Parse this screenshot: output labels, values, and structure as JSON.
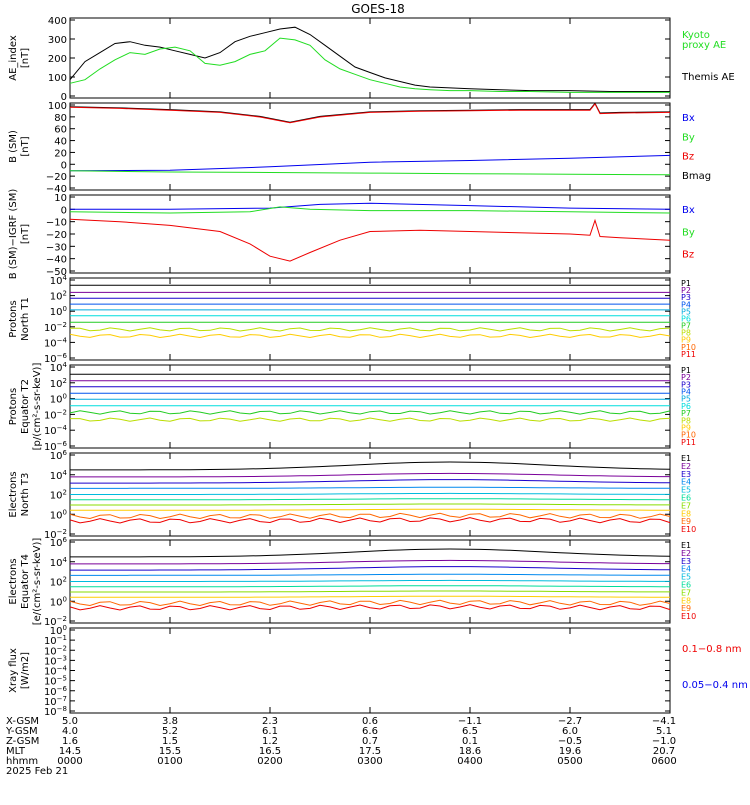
{
  "title": "GOES-18",
  "colors": {
    "black": "#000000",
    "green": "#22dd22",
    "blue": "#0000ee",
    "red": "#ee0000",
    "P": [
      "#000000",
      "#7a0099",
      "#1a00cc",
      "#0055ee",
      "#00aadd",
      "#00dddd",
      "#22cc22",
      "#bbdd00",
      "#ffcc00",
      "#ff6600",
      "#ee0000",
      "#aa0000"
    ],
    "E": [
      "#000000",
      "#7a0099",
      "#1a00cc",
      "#0088ee",
      "#00bbdd",
      "#00dd99",
      "#88dd00",
      "#ffcc00",
      "#ff6600",
      "#ee0000",
      "#aa0000"
    ]
  },
  "panels": [
    {
      "id": "ae",
      "ylabel": [
        "AE_index",
        "[nT]"
      ],
      "ticks": [
        "400",
        "300",
        "200",
        "100",
        "0"
      ],
      "legend": [
        {
          "text": "Kyoto",
          "color": "green"
        },
        {
          "text": "proxy AE",
          "color": "green"
        },
        {
          "text": "Themis AE",
          "color": "black"
        }
      ]
    },
    {
      "id": "bsm",
      "ylabel": [
        "B (SM)",
        "[nT]"
      ],
      "ticks": [
        "100",
        "80",
        "60",
        "40",
        "20",
        "0",
        "−20",
        "−40"
      ],
      "legend": [
        {
          "text": "Bx",
          "color": "blue"
        },
        {
          "text": "By",
          "color": "green"
        },
        {
          "text": "Bz",
          "color": "red"
        },
        {
          "text": "Bmag",
          "color": "black"
        }
      ]
    },
    {
      "id": "bigrf",
      "ylabel": [
        "B (SM)−IGRF (SM)",
        "[nT]"
      ],
      "ticks": [
        "10",
        "0",
        "−10",
        "−20",
        "−30",
        "−40",
        "−50"
      ],
      "legend": [
        {
          "text": "Bx",
          "color": "blue"
        },
        {
          "text": "By",
          "color": "green"
        },
        {
          "text": "Bz",
          "color": "red"
        }
      ]
    },
    {
      "id": "pn",
      "ylabel": [
        "Protons",
        "North T1"
      ],
      "ticks": [
        "10^4",
        "10^2",
        "10^0",
        "10^-2",
        "10^-4",
        "10^-6"
      ],
      "legend": [
        "P1",
        "P2",
        "P3",
        "P4",
        "P5",
        "P6",
        "P7",
        "P8",
        "P9",
        "P10",
        "P11"
      ]
    },
    {
      "id": "pe",
      "ylabel": [
        "Protons",
        "Equator T2",
        "[p/(cm²-s-sr-keV)]"
      ],
      "ticks": [
        "10^4",
        "10^2",
        "10^0",
        "10^-2",
        "10^-4",
        "10^-6"
      ],
      "legend": [
        "P1",
        "P2",
        "P3",
        "P4",
        "P5",
        "P6",
        "P7",
        "P8",
        "P9",
        "P10",
        "P11"
      ]
    },
    {
      "id": "en",
      "ylabel": [
        "Electrons",
        "North T3"
      ],
      "ticks": [
        "10^6",
        "10^4",
        "10^2",
        "10^0",
        "10^-2"
      ],
      "legend": [
        "E1",
        "E2",
        "E3",
        "E4",
        "E5",
        "E6",
        "E7",
        "E8",
        "E9",
        "E10"
      ]
    },
    {
      "id": "ee",
      "ylabel": [
        "Electrons",
        "Equator T4",
        "[e/(cm²-s-sr-keV)]"
      ],
      "ticks": [
        "10^6",
        "10^4",
        "10^2",
        "10^0",
        "10^-2"
      ],
      "legend": [
        "E1",
        "E2",
        "E3",
        "E4",
        "E5",
        "E6",
        "E7",
        "E8",
        "E9",
        "E10"
      ]
    },
    {
      "id": "xr",
      "ylabel": [
        "Xray flux",
        "[W/m2]"
      ],
      "ticks": [
        "10^0",
        "10^-1",
        "10^-2",
        "10^-3",
        "10^-4",
        "10^-5",
        "10^-6",
        "10^-7",
        "10^-8"
      ],
      "legend": [
        {
          "text": "0.1−0.8 nm",
          "color": "red"
        },
        {
          "text": "0.05−0.4 nm",
          "color": "blue"
        }
      ]
    }
  ],
  "footer": {
    "labels": [
      "X-GSM",
      "Y-GSM",
      "Z-GSM",
      "MLT",
      "hhmm",
      "2025 Feb 21"
    ],
    "columns": [
      [
        "5.0",
        "4.0",
        "1.6",
        "14.5",
        "0000"
      ],
      [
        "3.8",
        "5.2",
        "1.5",
        "15.5",
        "0100"
      ],
      [
        "2.3",
        "6.1",
        "1.2",
        "16.5",
        "0200"
      ],
      [
        "0.6",
        "6.6",
        "0.7",
        "17.5",
        "0300"
      ],
      [
        "−1.1",
        "6.5",
        "0.1",
        "18.6",
        "0400"
      ],
      [
        "−2.7",
        "6.0",
        "−0.5",
        "19.6",
        "0500"
      ],
      [
        "−4.1",
        "5.1",
        "−1.0",
        "20.7",
        "0600"
      ]
    ]
  },
  "chart_data": {
    "type": "line",
    "title": "GOES-18",
    "x_ticks": [
      "0000",
      "0100",
      "0200",
      "0300",
      "0400",
      "0500",
      "0600"
    ],
    "xlim": [
      0,
      6
    ],
    "x_unit": "hours UT, 2025 Feb 21",
    "panels": [
      {
        "id": "ae",
        "ylim": [
          0,
          420
        ],
        "scale": "linear",
        "series": [
          {
            "name": "Themis AE",
            "color": "black",
            "x": [
              0,
              0.15,
              0.3,
              0.45,
              0.6,
              0.75,
              0.9,
              1.05,
              1.2,
              1.35,
              1.5,
              1.65,
              1.8,
              1.95,
              2.1,
              2.25,
              2.4,
              2.55,
              2.7,
              2.85,
              3.0,
              3.15,
              3.3,
              3.45,
              3.6,
              3.8,
              4.0,
              4.3,
              4.6,
              5.0,
              5.4,
              6.0
            ],
            "y": [
              90,
              190,
              240,
              290,
              300,
              280,
              270,
              250,
              230,
              210,
              240,
              300,
              330,
              350,
              370,
              380,
              340,
              280,
              220,
              160,
              130,
              100,
              80,
              60,
              50,
              45,
              40,
              35,
              30,
              30,
              25,
              25
            ]
          },
          {
            "name": "Kyoto proxy AE",
            "color": "green",
            "x": [
              0,
              0.15,
              0.3,
              0.45,
              0.6,
              0.75,
              0.9,
              1.05,
              1.2,
              1.35,
              1.5,
              1.65,
              1.8,
              1.95,
              2.1,
              2.25,
              2.4,
              2.55,
              2.7,
              2.85,
              3.0,
              3.15,
              3.3,
              3.45,
              3.6,
              3.8,
              4.0,
              4.3,
              4.6,
              5.0,
              5.4,
              6.0
            ],
            "y": [
              70,
              90,
              150,
              200,
              240,
              230,
              260,
              270,
              250,
              180,
              170,
              190,
              230,
              250,
              320,
              310,
              280,
              200,
              150,
              120,
              90,
              70,
              50,
              40,
              35,
              30,
              30,
              25,
              25,
              20,
              20,
              20
            ]
          }
        ]
      },
      {
        "id": "bsm",
        "ylim": [
          -45,
          100
        ],
        "scale": "linear",
        "series": [
          {
            "name": "Bmag",
            "color": "black",
            "x": [
              0,
              0.5,
              1,
              1.5,
              1.9,
              2.2,
              2.5,
              3,
              3.5,
              4,
              4.5,
              5,
              5.2,
              5.25,
              5.3,
              5.5,
              6
            ],
            "y": [
              97,
              95,
              92,
              88,
              80,
              70,
              80,
              88,
              90,
              91,
              92,
              92,
              92,
              103,
              86,
              87,
              88
            ]
          },
          {
            "name": "Bz",
            "color": "red",
            "x": [
              0,
              0.5,
              1,
              1.5,
              1.9,
              2.2,
              2.5,
              3,
              3.5,
              4,
              4.5,
              5,
              5.2,
              5.25,
              5.3,
              5.5,
              6
            ],
            "y": [
              96,
              94,
              91,
              87,
              79,
              69,
              79,
              87,
              89,
              90,
              91,
              91,
              91,
              102,
              85,
              86,
              87
            ]
          },
          {
            "name": "Bx",
            "color": "blue",
            "x": [
              0,
              1,
              2,
              2.5,
              3,
              4,
              5,
              6
            ],
            "y": [
              -15,
              -14,
              -8,
              -4,
              0,
              3,
              7,
              12
            ]
          },
          {
            "name": "By",
            "color": "green",
            "x": [
              0,
              1,
              2,
              3,
              4,
              5,
              6
            ],
            "y": [
              -15,
              -17,
              -18,
              -19,
              -20,
              -21,
              -22
            ]
          }
        ]
      },
      {
        "id": "bigrf",
        "ylim": [
          -50,
          10
        ],
        "scale": "linear",
        "series": [
          {
            "name": "Bx",
            "color": "blue",
            "x": [
              0,
              1,
              2,
              2.5,
              3,
              4,
              5,
              6
            ],
            "y": [
              0,
              0,
              1,
              4,
              5,
              3,
              1,
              0
            ]
          },
          {
            "name": "By",
            "color": "green",
            "x": [
              0,
              1,
              1.8,
              2.1,
              2.4,
              3,
              4,
              5,
              6
            ],
            "y": [
              -2,
              -3,
              -2,
              2,
              0,
              -1,
              -1,
              -2,
              -3
            ]
          },
          {
            "name": "Bz",
            "color": "red",
            "x": [
              0,
              0.5,
              1,
              1.5,
              1.8,
              2.0,
              2.2,
              2.4,
              2.7,
              3,
              3.5,
              4,
              5,
              5.2,
              5.25,
              5.3,
              5.5,
              6
            ],
            "y": [
              -8,
              -10,
              -13,
              -18,
              -28,
              -38,
              -42,
              -35,
              -25,
              -18,
              -17,
              -18,
              -20,
              -21,
              -9,
              -22,
              -23,
              -25
            ]
          }
        ]
      },
      {
        "id": "pn",
        "ylim": [
          -7,
          5
        ],
        "scale": "log10",
        "series_levels": [
          4.2,
          3.1,
          2.2,
          1.3,
          0.4,
          -0.5,
          -1.5,
          -2.6,
          -3.6
        ]
      },
      {
        "id": "pe",
        "ylim": [
          -7,
          5
        ],
        "scale": "log10",
        "series_levels": [
          3.9,
          2.9,
          2.0,
          1.0,
          0.1,
          -0.9,
          -1.9,
          -3.0
        ]
      },
      {
        "id": "en",
        "ylim": [
          -2.5,
          6.5
        ],
        "scale": "log10",
        "series_levels": [
          4.8,
          4.0,
          3.3,
          2.7,
          2.0,
          1.4,
          0.8,
          0.2,
          -0.5,
          -1.0
        ]
      },
      {
        "id": "ee",
        "ylim": [
          -2.5,
          6.5
        ],
        "scale": "log10",
        "series_levels": [
          4.8,
          4.0,
          3.3,
          2.7,
          2.0,
          1.4,
          0.8,
          0.2,
          -0.5,
          -1.0
        ]
      },
      {
        "id": "xr",
        "ylim": [
          -8,
          0
        ],
        "scale": "log10",
        "series": []
      }
    ]
  }
}
